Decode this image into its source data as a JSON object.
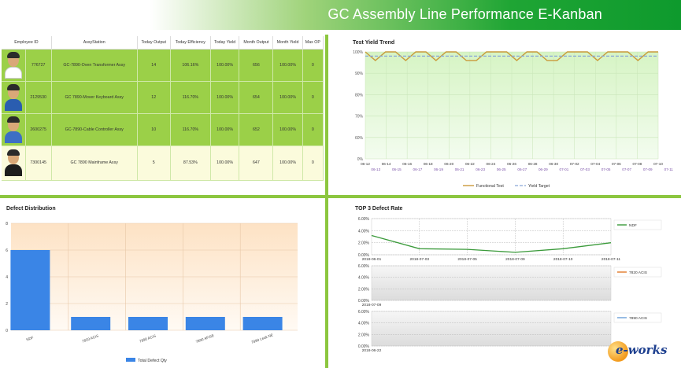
{
  "header": {
    "title": "GC Assembly Line Performance E-Kanban"
  },
  "performance_table": {
    "columns": [
      "Employee ID",
      "AssyStation",
      "Today Output",
      "Today Efficiency",
      "Today Yield",
      "Month Output",
      "Month Yield",
      "Max OP"
    ],
    "rows": [
      {
        "employee_id": "776727",
        "station": "GC-7890-Oven Transformer Assy",
        "today_output": "14",
        "today_efficiency": "106.16%",
        "today_yield": "100.00%",
        "month_output": "656",
        "month_yield": "100.00%",
        "max_op": "0"
      },
      {
        "employee_id": "2129530",
        "station": "GC 7890-Mover Keyboard Assy",
        "today_output": "12",
        "today_efficiency": "116.70%",
        "today_yield": "100.00%",
        "month_output": "654",
        "month_yield": "100.00%",
        "max_op": "0"
      },
      {
        "employee_id": "2600275",
        "station": "GC-7890-Cable Controller Assy",
        "today_output": "10",
        "today_efficiency": "116.70%",
        "today_yield": "100.00%",
        "month_output": "652",
        "month_yield": "100.00%",
        "max_op": "0"
      },
      {
        "employee_id": "7300145",
        "station": "GC 7890 Mainframe Assy",
        "today_output": "5",
        "today_efficiency": "87.53%",
        "today_yield": "100.00%",
        "month_output": "647",
        "month_yield": "100.00%",
        "max_op": "0"
      }
    ]
  },
  "colors": {
    "accent_green": "#8cc63f",
    "row_green": "#9bd048",
    "row_pale": "#fbfbdc",
    "bar_blue": "#3a85e6"
  },
  "yield_trend": {
    "title": "Test Yield Trend",
    "chart_data": {
      "type": "line",
      "title": "Test Yield Trend",
      "ylabel": "",
      "ylim": [
        0,
        100
      ],
      "yticks": [
        "0%",
        "20%",
        "40%",
        "60%",
        "70%",
        "80%",
        "90%",
        "100%"
      ],
      "x_top": [
        "06-12",
        "06-14",
        "06-16",
        "06-18",
        "06-20",
        "06-22",
        "06-24",
        "06-26",
        "06-28",
        "06-30",
        "07-02",
        "07-04",
        "07-06",
        "07-08",
        "07-10"
      ],
      "x_bottom": [
        "06-13",
        "06-15",
        "06-17",
        "06-19",
        "06-21",
        "06-23",
        "06-25",
        "06-27",
        "06-29",
        "07-01",
        "07-03",
        "07-05",
        "07-07",
        "07-09",
        "07-11"
      ],
      "series": [
        {
          "name": "Functional Test",
          "values": [
            100,
            96,
            100,
            100,
            96,
            100,
            100,
            96,
            100,
            100,
            96,
            96,
            100,
            100,
            100,
            96,
            100,
            100,
            96,
            96,
            100,
            100,
            100,
            96,
            100,
            100,
            100,
            96,
            100,
            100
          ]
        },
        {
          "name": "Yield Target",
          "values": [
            98,
            98,
            98,
            98,
            98,
            98,
            98,
            98,
            98,
            98,
            98,
            98,
            98,
            98,
            98,
            98,
            98,
            98,
            98,
            98,
            98,
            98,
            98,
            98,
            98,
            98,
            98,
            98,
            98,
            98
          ]
        }
      ],
      "legend": [
        "Functional Test",
        "Yield Target"
      ]
    }
  },
  "defect_distribution": {
    "title": "Defect Distribution",
    "chart_data": {
      "type": "bar",
      "title": "Defect Distribution",
      "categories": [
        "NDF",
        "7820 ACIS",
        "7890 ACIS",
        "7890 AFISE",
        "7890 Leak NE"
      ],
      "values": [
        6,
        1,
        1,
        1,
        1
      ],
      "ylim": [
        0,
        8
      ],
      "yticks": [
        "0",
        "2",
        "4",
        "6",
        "8"
      ],
      "legend": "Total Defect Qty"
    }
  },
  "top3_defect": {
    "title": "TOP 3 Defect Rate",
    "chart_data": [
      {
        "type": "line",
        "series_name": "NDF",
        "yticks": [
          "0.00%",
          "2.00%",
          "4.00%",
          "6.00%"
        ],
        "x": [
          "2018-06-01",
          "2018-07-03",
          "2018-07-05",
          "2018-07-09",
          "2018-07-10",
          "2018-07-11"
        ],
        "values": [
          3.2,
          1.0,
          0.9,
          0.4,
          1.0,
          2.0
        ],
        "ylim": [
          0,
          6
        ]
      },
      {
        "type": "line",
        "series_name": "7820 ACIS",
        "yticks": [
          "0.00%",
          "2.00%",
          "4.00%",
          "6.00%"
        ],
        "x": [
          "2018-07-09"
        ],
        "values": [
          0
        ],
        "ylim": [
          0,
          6
        ]
      },
      {
        "type": "line",
        "series_name": "7890 ACIS",
        "yticks": [
          "0.00%",
          "2.00%",
          "4.00%",
          "6.00%"
        ],
        "x": [
          "2018-06-22"
        ],
        "values": [
          0
        ],
        "ylim": [
          0,
          6
        ]
      }
    ]
  },
  "watermark": {
    "brand": "e-works"
  }
}
